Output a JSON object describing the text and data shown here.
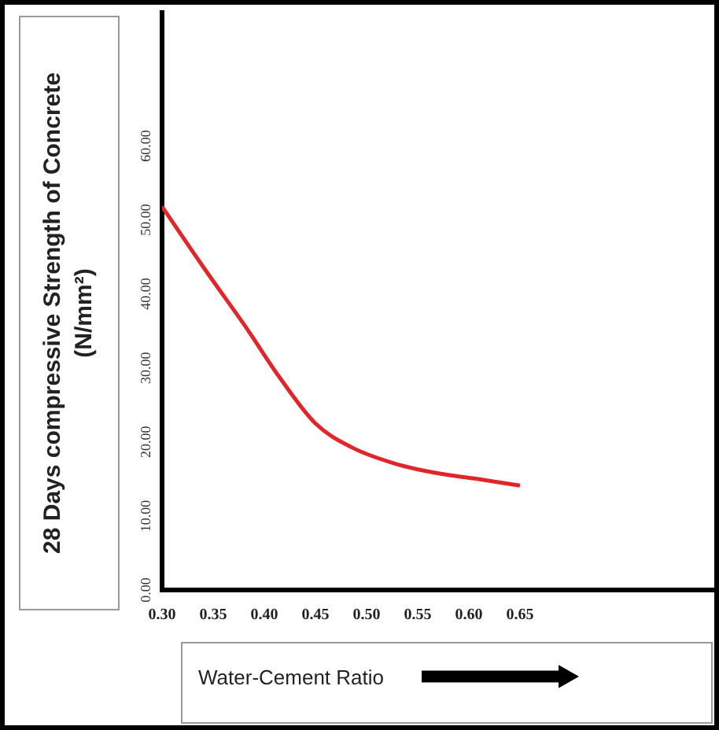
{
  "chart_data": {
    "type": "line",
    "xlabel": "Water-Cement Ratio",
    "ylabel": "28 Days compressive Strength of Concrete (N/mm²)",
    "x": [
      0.3,
      0.342,
      0.383,
      0.414,
      0.45,
      0.485,
      0.527,
      0.568,
      0.608,
      0.65
    ],
    "series": [
      {
        "color": "#e0262b",
        "values": [
          51.8,
          43.3,
          35.3,
          28.9,
          22.5,
          19.3,
          17.1,
          15.8,
          15.0,
          14.1
        ]
      }
    ],
    "xlim": [
      0.3,
      0.84
    ],
    "xticks": [
      {
        "value": 0.3,
        "label": "0.30"
      },
      {
        "value": 0.35,
        "label": "0.35"
      },
      {
        "value": 0.4,
        "label": "0.40"
      },
      {
        "value": 0.45,
        "label": "0.45"
      },
      {
        "value": 0.5,
        "label": "0.50"
      },
      {
        "value": 0.55,
        "label": "0.55"
      },
      {
        "value": 0.6,
        "label": "0.60"
      },
      {
        "value": 0.65,
        "label": "0.65"
      }
    ],
    "ylim": [
      0,
      78
    ],
    "yticks": [
      {
        "value": 0,
        "label": "0.00"
      },
      {
        "value": 10,
        "label": "10.00"
      },
      {
        "value": 20,
        "label": "20.00"
      },
      {
        "value": 30,
        "label": "30.00"
      },
      {
        "value": 40,
        "label": "40.00"
      },
      {
        "value": 50,
        "label": "50.00"
      },
      {
        "value": 60,
        "label": "60.00"
      }
    ],
    "grid": false,
    "legend": false,
    "marker": "none",
    "line_style": "solid"
  }
}
